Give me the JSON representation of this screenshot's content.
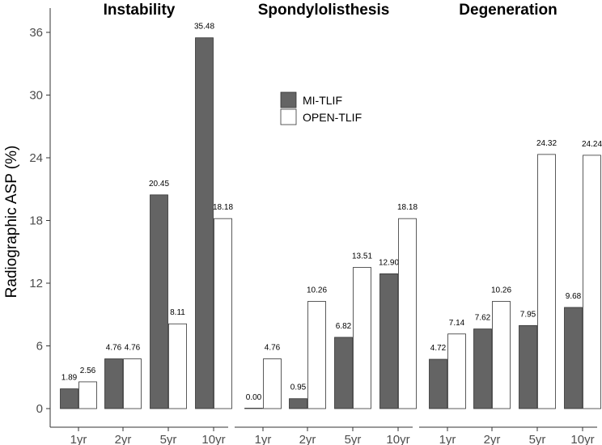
{
  "chart_data": {
    "type": "bar",
    "ylabel": "Radiographic ASP (%)",
    "ylim": [
      0,
      36
    ],
    "yticks": [
      0,
      6,
      12,
      18,
      24,
      30,
      36
    ],
    "categories": [
      "1yr",
      "2yr",
      "5yr",
      "10yr"
    ],
    "legend": {
      "position": "top-center",
      "entries": [
        {
          "name": "MI-TLIF",
          "color": "#646464"
        },
        {
          "name": "OPEN-TLIF",
          "color": "#ffffff"
        }
      ]
    },
    "panels": [
      {
        "title": "Instability",
        "series": [
          {
            "name": "MI-TLIF",
            "values": [
              1.89,
              4.76,
              20.45,
              35.48
            ],
            "labels": [
              "1.89",
              "4.76",
              "20.45",
              "35.48"
            ]
          },
          {
            "name": "OPEN-TLIF",
            "values": [
              2.56,
              4.76,
              8.11,
              18.18
            ],
            "labels": [
              "2.56",
              "4.76",
              "8.11",
              "18.18"
            ]
          }
        ]
      },
      {
        "title": "Spondylolisthesis",
        "series": [
          {
            "name": "MI-TLIF",
            "values": [
              0.0,
              0.95,
              6.82,
              12.9
            ],
            "labels": [
              "0.00",
              "0.95",
              "6.82",
              "12.90"
            ]
          },
          {
            "name": "OPEN-TLIF",
            "values": [
              4.76,
              10.26,
              13.51,
              18.18
            ],
            "labels": [
              "4.76",
              "10.26",
              "13.51",
              "18.18"
            ]
          }
        ]
      },
      {
        "title": "Degeneration",
        "series": [
          {
            "name": "MI-TLIF",
            "values": [
              4.72,
              7.62,
              7.95,
              9.68
            ],
            "labels": [
              "4.72",
              "7.62",
              "7.95",
              "9.68"
            ]
          },
          {
            "name": "OPEN-TLIF",
            "values": [
              7.14,
              10.26,
              24.32,
              24.24
            ],
            "labels": [
              "7.14",
              "10.26",
              "24.32",
              "24.24"
            ]
          }
        ]
      }
    ]
  }
}
